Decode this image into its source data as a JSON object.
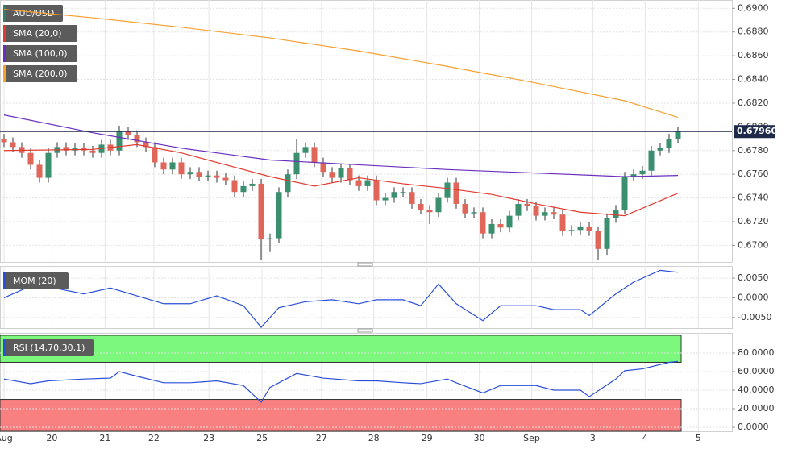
{
  "chart_data": [
    {
      "type": "candlestick",
      "name": "AUD/USD",
      "up_color": "#3a8f6e",
      "down_color": "#e0665a",
      "ylim": [
        0.6686,
        0.6907
      ],
      "yticks": [
        {
          "value": 0.69,
          "label": "0.6900"
        },
        {
          "value": 0.688,
          "label": "0.6880"
        },
        {
          "value": 0.686,
          "label": "0.6860"
        },
        {
          "value": 0.684,
          "label": "0.6840"
        },
        {
          "value": 0.682,
          "label": "0.6820"
        },
        {
          "value": 0.68,
          "label": "0.6800"
        },
        {
          "value": 0.678,
          "label": "0.6780"
        },
        {
          "value": 0.676,
          "label": "0.6760"
        },
        {
          "value": 0.674,
          "label": "0.6740"
        },
        {
          "value": 0.672,
          "label": "0.6720"
        },
        {
          "value": 0.67,
          "label": "0.6700"
        }
      ],
      "xticks": [
        {
          "value": 0,
          "label": "Aug"
        },
        {
          "value": 5.4,
          "label": "20"
        },
        {
          "value": 11.4,
          "label": "21"
        },
        {
          "value": 16.9,
          "label": "22"
        },
        {
          "value": 23.1,
          "label": "23"
        },
        {
          "value": 29.1,
          "label": "25"
        },
        {
          "value": 35.8,
          "label": "27"
        },
        {
          "value": 41.7,
          "label": "28"
        },
        {
          "value": 47.7,
          "label": "29"
        },
        {
          "value": 53.6,
          "label": "30"
        },
        {
          "value": 59.5,
          "label": "Sep"
        },
        {
          "value": 66.4,
          "label": "3"
        },
        {
          "value": 72.3,
          "label": "4"
        },
        {
          "value": 78.3,
          "label": "5"
        }
      ],
      "last_price": {
        "value": 0.6796,
        "label": "0.67960"
      },
      "candles": [
        [
          0.679,
          0.6794,
          0.6783,
          0.6787
        ],
        [
          0.6787,
          0.6791,
          0.6779,
          0.6783
        ],
        [
          0.6783,
          0.6787,
          0.6774,
          0.6778
        ],
        [
          0.6778,
          0.6782,
          0.6764,
          0.6768
        ],
        [
          0.6768,
          0.6772,
          0.6753,
          0.6757
        ],
        [
          0.6757,
          0.6782,
          0.6753,
          0.6778
        ],
        [
          0.6778,
          0.6787,
          0.6774,
          0.6783
        ],
        [
          0.6783,
          0.6787,
          0.6776,
          0.678
        ],
        [
          0.678,
          0.6786,
          0.6776,
          0.6782
        ],
        [
          0.6782,
          0.6786,
          0.6776,
          0.678
        ],
        [
          0.678,
          0.6784,
          0.6774,
          0.6778
        ],
        [
          0.6778,
          0.6789,
          0.6774,
          0.6785
        ],
        [
          0.6785,
          0.6789,
          0.6776,
          0.678
        ],
        [
          0.678,
          0.6801,
          0.6776,
          0.6796
        ],
        [
          0.6796,
          0.68,
          0.6789,
          0.6793
        ],
        [
          0.6793,
          0.6797,
          0.6783,
          0.6787
        ],
        [
          0.6787,
          0.6791,
          0.6779,
          0.6783
        ],
        [
          0.6783,
          0.6787,
          0.6766,
          0.677
        ],
        [
          0.677,
          0.6774,
          0.676,
          0.6764
        ],
        [
          0.6764,
          0.6774,
          0.676,
          0.677
        ],
        [
          0.677,
          0.6774,
          0.6756,
          0.676
        ],
        [
          0.676,
          0.6766,
          0.6756,
          0.6762
        ],
        [
          0.6762,
          0.6766,
          0.6754,
          0.6758
        ],
        [
          0.6758,
          0.6763,
          0.6754,
          0.6759
        ],
        [
          0.6759,
          0.6763,
          0.6753,
          0.6757
        ],
        [
          0.6757,
          0.6761,
          0.6751,
          0.6755
        ],
        [
          0.6755,
          0.6759,
          0.6741,
          0.6745
        ],
        [
          0.6745,
          0.6754,
          0.6741,
          0.675
        ],
        [
          0.675,
          0.6756,
          0.6746,
          0.6752
        ],
        [
          0.6752,
          0.6756,
          0.6688,
          0.6705
        ],
        [
          0.6705,
          0.671,
          0.6695,
          0.6706
        ],
        [
          0.6706,
          0.6749,
          0.6702,
          0.6745
        ],
        [
          0.6745,
          0.6764,
          0.6741,
          0.676
        ],
        [
          0.676,
          0.679,
          0.6756,
          0.6778
        ],
        [
          0.6778,
          0.6787,
          0.6774,
          0.6783
        ],
        [
          0.6783,
          0.6787,
          0.6766,
          0.677
        ],
        [
          0.677,
          0.6774,
          0.6758,
          0.6762
        ],
        [
          0.6762,
          0.6766,
          0.6753,
          0.6757
        ],
        [
          0.6757,
          0.6769,
          0.6753,
          0.6765
        ],
        [
          0.6765,
          0.6769,
          0.6751,
          0.6755
        ],
        [
          0.6755,
          0.6759,
          0.6746,
          0.675
        ],
        [
          0.675,
          0.6759,
          0.6746,
          0.6755
        ],
        [
          0.6755,
          0.6759,
          0.6734,
          0.6738
        ],
        [
          0.6738,
          0.6744,
          0.6734,
          0.674
        ],
        [
          0.674,
          0.6749,
          0.6736,
          0.6745
        ],
        [
          0.6745,
          0.6749,
          0.6741,
          0.6745
        ],
        [
          0.6745,
          0.6749,
          0.6731,
          0.6735
        ],
        [
          0.6735,
          0.6739,
          0.6726,
          0.673
        ],
        [
          0.673,
          0.6734,
          0.6718,
          0.6728
        ],
        [
          0.6728,
          0.6744,
          0.6724,
          0.674
        ],
        [
          0.674,
          0.6757,
          0.6736,
          0.6753
        ],
        [
          0.6753,
          0.6757,
          0.6731,
          0.6735
        ],
        [
          0.6735,
          0.6739,
          0.6723,
          0.6727
        ],
        [
          0.6727,
          0.6732,
          0.6723,
          0.6728
        ],
        [
          0.6728,
          0.6732,
          0.6706,
          0.671
        ],
        [
          0.671,
          0.6722,
          0.6706,
          0.6718
        ],
        [
          0.6718,
          0.6722,
          0.6711,
          0.6715
        ],
        [
          0.6715,
          0.6729,
          0.6711,
          0.6725
        ],
        [
          0.6725,
          0.6739,
          0.6721,
          0.6735
        ],
        [
          0.6735,
          0.6739,
          0.6729,
          0.6733
        ],
        [
          0.6733,
          0.6737,
          0.6721,
          0.6725
        ],
        [
          0.6725,
          0.6732,
          0.6721,
          0.6728
        ],
        [
          0.6728,
          0.6732,
          0.6722,
          0.6726
        ],
        [
          0.6726,
          0.673,
          0.6708,
          0.6712
        ],
        [
          0.6712,
          0.6717,
          0.6708,
          0.6713
        ],
        [
          0.6713,
          0.672,
          0.6709,
          0.6716
        ],
        [
          0.6716,
          0.672,
          0.6708,
          0.6712
        ],
        [
          0.6712,
          0.6716,
          0.6688,
          0.6697
        ],
        [
          0.6697,
          0.6727,
          0.6692,
          0.6723
        ],
        [
          0.6723,
          0.6734,
          0.6719,
          0.673
        ],
        [
          0.673,
          0.6762,
          0.6726,
          0.6758
        ],
        [
          0.6758,
          0.6764,
          0.6754,
          0.676
        ],
        [
          0.676,
          0.6767,
          0.6756,
          0.6763
        ],
        [
          0.6763,
          0.6784,
          0.6759,
          0.678
        ],
        [
          0.678,
          0.6786,
          0.6776,
          0.6782
        ],
        [
          0.6782,
          0.6794,
          0.6778,
          0.679
        ],
        [
          0.679,
          0.68,
          0.6786,
          0.6796
        ]
      ],
      "series": [
        {
          "name": "SMA (20,0)",
          "color": "#e03a2f",
          "x": [
            0,
            10,
            15,
            20,
            25,
            30,
            35,
            40,
            45,
            50,
            55,
            60,
            65,
            70,
            76
          ],
          "values": [
            0.678,
            0.6781,
            0.6785,
            0.6778,
            0.6768,
            0.6758,
            0.675,
            0.6757,
            0.6752,
            0.6748,
            0.6743,
            0.6735,
            0.6728,
            0.6725,
            0.6744
          ]
        },
        {
          "name": "SMA (100,0)",
          "color": "#6a2fbf",
          "x": [
            0,
            10,
            20,
            30,
            40,
            50,
            60,
            70,
            76
          ],
          "values": [
            0.681,
            0.6795,
            0.6782,
            0.6772,
            0.6768,
            0.6764,
            0.6761,
            0.6758,
            0.6759
          ]
        },
        {
          "name": "SMA (200,0)",
          "color": "#f5a030",
          "x": [
            0,
            10,
            20,
            30,
            40,
            50,
            60,
            70,
            76
          ],
          "values": [
            0.6899,
            0.6892,
            0.6884,
            0.6875,
            0.6864,
            0.6851,
            0.6837,
            0.6822,
            0.6808
          ]
        }
      ]
    },
    {
      "type": "line",
      "ylim": [
        -0.0077,
        0.0081
      ],
      "yticks": [
        {
          "value": 0.005,
          "label": "0.0050"
        },
        {
          "value": 0,
          "label": "0.0000"
        },
        {
          "value": -0.005,
          "label": "-0.0050"
        }
      ],
      "series": [
        {
          "name": "MOM (20)",
          "color": "#2a4fd8",
          "x": [
            0,
            3,
            5,
            9,
            12,
            15,
            18,
            21,
            24,
            27,
            29,
            31,
            34,
            37,
            40,
            42,
            45,
            47,
            49,
            51,
            54,
            56,
            60,
            62,
            65,
            66,
            69,
            71,
            74,
            76
          ],
          "values": [
            0.0,
            0.003,
            0.0028,
            0.001,
            0.0025,
            0.0005,
            -0.0015,
            -0.0015,
            0.0005,
            -0.002,
            -0.0075,
            -0.0025,
            -0.001,
            -0.0005,
            -0.0015,
            -0.0005,
            -0.0005,
            -0.002,
            0.0035,
            -0.0015,
            -0.0058,
            -0.002,
            -0.002,
            -0.003,
            -0.003,
            -0.0045,
            0.001,
            0.004,
            0.007,
            0.0065
          ]
        }
      ]
    },
    {
      "type": "line",
      "ylim": [
        -4.3,
        101.7
      ],
      "overbought": 70,
      "oversold": 30,
      "yticks": [
        {
          "value": 80,
          "label": "80.0000"
        },
        {
          "value": 60,
          "label": "60.0000"
        },
        {
          "value": 40,
          "label": "40.0000"
        },
        {
          "value": 20,
          "label": "20.0000"
        },
        {
          "value": 0,
          "label": "0.0000"
        }
      ],
      "series": [
        {
          "name": "RSI (14,70,30,1)",
          "color": "#2a4fd8",
          "x": [
            0,
            3,
            5,
            9,
            12,
            13,
            15,
            18,
            21,
            24,
            27,
            29,
            30,
            33,
            36,
            40,
            42,
            45,
            47,
            50,
            51,
            54,
            56,
            60,
            62,
            65,
            66,
            69,
            70,
            72,
            75,
            76
          ],
          "values": [
            52,
            47,
            50,
            52,
            53,
            60,
            55,
            48,
            48,
            50,
            45,
            27,
            43,
            58,
            53,
            50,
            50,
            48,
            47,
            52,
            48,
            37,
            45,
            45,
            40,
            40,
            33,
            52,
            61,
            63,
            70,
            71
          ]
        }
      ]
    }
  ]
}
